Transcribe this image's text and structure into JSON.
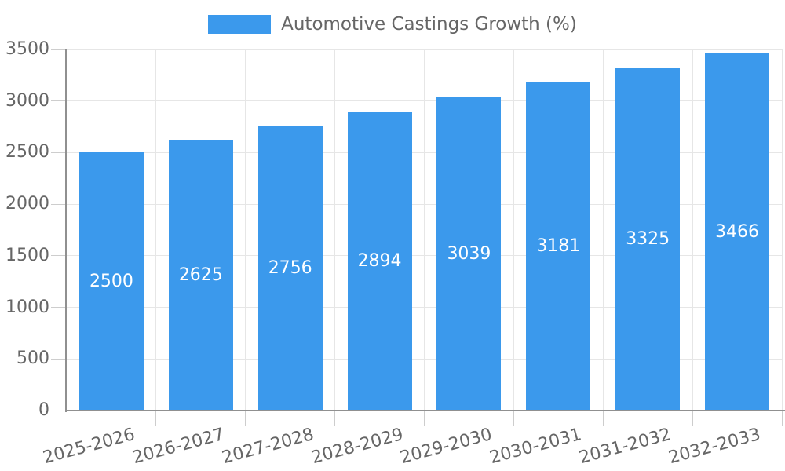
{
  "legend": {
    "label": "Automotive Castings Growth (%)"
  },
  "chart_data": {
    "type": "bar",
    "title": "Automotive Castings Growth (%)",
    "categories": [
      "2025-2026",
      "2026-2027",
      "2027-2028",
      "2028-2029",
      "2029-2030",
      "2030-2031",
      "2031-2032",
      "2032-2033"
    ],
    "series": [
      {
        "name": "Automotive Castings Growth (%)",
        "values": [
          2500,
          2625,
          2756,
          2894,
          3039,
          3181,
          3325,
          3466
        ]
      }
    ],
    "value_labels_shown": true,
    "xlabel": "",
    "ylabel": "",
    "ylim": [
      0,
      3500
    ],
    "yticks": [
      0,
      500,
      1000,
      1500,
      2000,
      2500,
      3000,
      3500
    ],
    "grid": true,
    "legend_position": "top",
    "x_tick_rotation_deg": -15,
    "colors": {
      "bar": "#3b99ec",
      "grid": "#e6e6e6",
      "tick": "#cdcdcd",
      "axis": "#909090",
      "label": "#666666",
      "value_label": "#ffffff"
    }
  }
}
